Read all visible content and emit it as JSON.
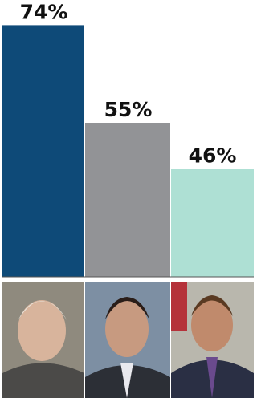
{
  "chart_data": {
    "type": "bar",
    "categories": [
      null,
      null,
      null
    ],
    "values": [
      74,
      55,
      46
    ],
    "value_labels": [
      "74%",
      "55%",
      "46%"
    ],
    "colors": [
      "#0e4a78",
      "#929396",
      "#aee0d4"
    ],
    "ylim": [
      25,
      75
    ]
  }
}
